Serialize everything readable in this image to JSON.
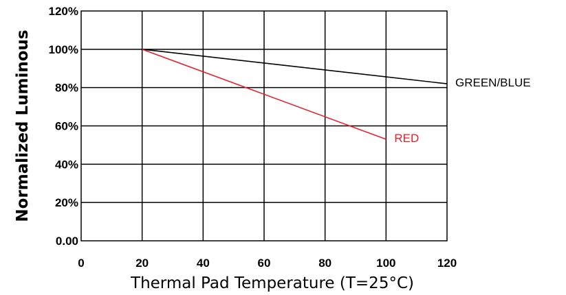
{
  "chart_data": {
    "type": "line",
    "xlabel": "Thermal Pad Temperature (T=25°C)",
    "ylabel": "Normalized Luminous",
    "xlim": [
      0,
      120
    ],
    "ylim": [
      0,
      120
    ],
    "x_ticks": [
      0,
      20,
      40,
      60,
      80,
      100,
      120
    ],
    "x_tick_labels": [
      "0",
      "20",
      "40",
      "60",
      "80",
      "100",
      "120"
    ],
    "y_ticks": [
      0,
      20,
      40,
      60,
      80,
      100,
      120
    ],
    "y_tick_labels": [
      "0.00",
      "20%",
      "40%",
      "60%",
      "80%",
      "100%",
      "120%"
    ],
    "grid": true,
    "series": [
      {
        "name": "GREEN/BLUE",
        "color": "#000000",
        "x": [
          20,
          120
        ],
        "y": [
          100,
          82
        ]
      },
      {
        "name": "RED",
        "color": "#e8202a",
        "x": [
          20,
          100
        ],
        "y": [
          100,
          53
        ]
      }
    ]
  }
}
